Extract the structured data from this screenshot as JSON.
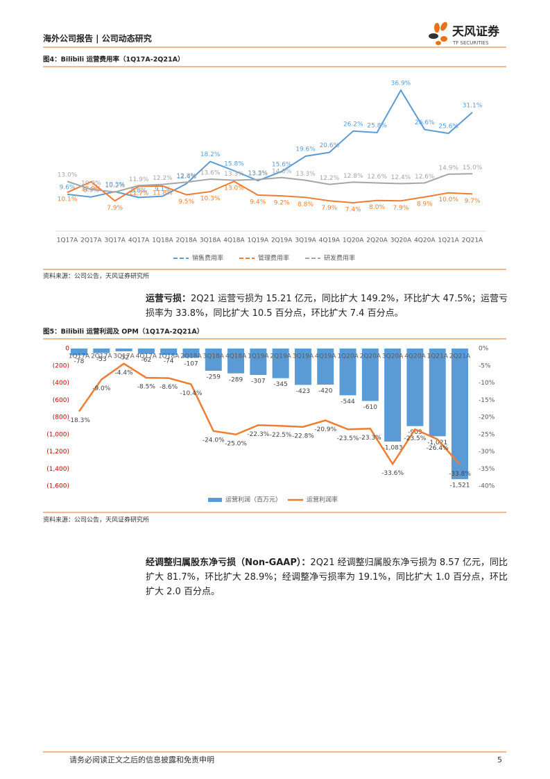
{
  "header": {
    "left": "海外公司报告 | 公司动态研究",
    "brand": "天风证券",
    "brand_en": "TF SECURITIES"
  },
  "chart_data": [
    {
      "type": "line",
      "title": "图4：Bilibili 运营费用率（1Q17A-2Q21A）",
      "categories": [
        "1Q17A",
        "2Q17A",
        "3Q17A",
        "4Q17A",
        "1Q18A",
        "2Q18A",
        "3Q18A",
        "4Q18A",
        "1Q19A",
        "2Q19A",
        "3Q19A",
        "4Q19A",
        "1Q20A",
        "2Q20A",
        "3Q20A",
        "4Q20A",
        "1Q21A",
        "2Q21A"
      ],
      "series": [
        {
          "name": "销售费用率",
          "color": "#5b9bd5",
          "values": [
            9.6,
            8.9,
            10.3,
            8.8,
            9.1,
            12.4,
            18.2,
            15.8,
            13.2,
            15.6,
            19.6,
            20.6,
            26.2,
            25.8,
            36.9,
            26.6,
            25.6,
            31.1
          ],
          "value_labels": [
            "9.6%",
            "8.9%",
            "10.3%",
            "8.8%",
            "9.1%",
            "12.4%",
            "18.2%",
            "15.8%",
            "13.2%",
            "15.6%",
            "19.6%",
            "20.6%",
            "26.2%",
            "25.8%",
            "36.9%",
            "26.6%",
            "25.6%",
            "31.1%"
          ]
        },
        {
          "name": "管理费用率",
          "color": "#ed7d31",
          "values": [
            10.1,
            12.9,
            7.9,
            11.7,
            11.8,
            9.5,
            10.3,
            13.0,
            9.4,
            9.2,
            8.8,
            7.9,
            7.4,
            8.0,
            7.9,
            8.9,
            10.0,
            9.7
          ],
          "value_labels": [
            "10.1%",
            "12.9%",
            "7.9%",
            "11.7%",
            "11.8%",
            "9.5%",
            "10.3%",
            "13.0%",
            "9.4%",
            "9.2%",
            "8.8%",
            "7.9%",
            "7.4%",
            "8.0%",
            "7.9%",
            "8.9%",
            "10.0%",
            "9.7%"
          ]
        },
        {
          "name": "研发费用率",
          "color": "#a5a5a5",
          "values": [
            13.0,
            10.9,
            10.2,
            11.9,
            12.2,
            12.8,
            13.6,
            13.3,
            13.5,
            14.0,
            13.3,
            12.2,
            12.8,
            12.6,
            12.4,
            12.6,
            14.9,
            15.0
          ],
          "value_labels": [
            "13.0%",
            "10.9%",
            "10.2%",
            "11.9%",
            "12.2%",
            "12.8%",
            "13.6%",
            "13.3%",
            "13.5%",
            "14.0%",
            "13.3%",
            "12.2%",
            "12.8%",
            "12.6%",
            "12.4%",
            "12.6%",
            "14.9%",
            "15.0%"
          ]
        }
      ]
    },
    {
      "type": "combo",
      "title": "图5：Bilibili 运营利润及 OPM（1Q17A-2Q21A）",
      "categories": [
        "1Q17A",
        "2Q17A",
        "3Q17A",
        "4Q17A",
        "1Q18A",
        "2Q18A",
        "3Q18A",
        "4Q18A",
        "1Q19A",
        "2Q19A",
        "3Q19A",
        "4Q19A",
        "1Q20A",
        "2Q20A",
        "3Q20A",
        "4Q20A",
        "1Q21A",
        "2Q21A"
      ],
      "ylim": [
        -1600,
        0
      ],
      "yticks": [
        0,
        {
          "value": -200,
          "label": "(200)"
        },
        {
          "value": -400,
          "label": "(400)"
        },
        {
          "value": -600,
          "label": "(600)"
        },
        {
          "value": -800,
          "label": "(800)"
        },
        {
          "value": -1000,
          "label": "(1,000)"
        },
        {
          "value": -1200,
          "label": "(1,200)"
        },
        {
          "value": -1400,
          "label": "(1,400)"
        },
        {
          "value": -1600,
          "label": "(1,600)"
        }
      ],
      "y2lim": [
        -40,
        0
      ],
      "y2ticks": [
        {
          "value": 0,
          "label": "0%"
        },
        {
          "value": -5,
          "label": "-5%"
        },
        {
          "value": -10,
          "label": "-10%"
        },
        {
          "value": -15,
          "label": "-15%"
        },
        {
          "value": -20,
          "label": "-20%"
        },
        {
          "value": -25,
          "label": "-25%"
        },
        {
          "value": -30,
          "label": "-30%"
        },
        {
          "value": -35,
          "label": "-35%"
        },
        {
          "value": -40,
          "label": "-40%"
        }
      ],
      "series": [
        {
          "name": "运营利润（百万元）",
          "type": "bar",
          "color": "#5b9bd5",
          "values": [
            -78,
            -53,
            -32,
            -62,
            -74,
            -107,
            -259,
            -289,
            -307,
            -345,
            -423,
            -420,
            -544,
            -610,
            -1083,
            -903,
            -1021,
            -1521
          ],
          "value_labels": [
            "-78",
            "-53",
            "-32",
            "-62",
            "-74",
            "-107",
            "-259",
            "-289",
            "-307",
            "-345",
            "-423",
            "-420",
            "-544",
            "-610",
            "-1,083",
            "-903",
            "-1,021",
            "-1,521"
          ]
        },
        {
          "name": "运营利润率",
          "type": "line",
          "axis": "y2",
          "color": "#ed7d31",
          "values": [
            -18.3,
            -9.0,
            -4.4,
            -8.5,
            -8.6,
            -10.4,
            -24.0,
            -25.0,
            -22.3,
            -22.5,
            -22.8,
            -20.9,
            -23.5,
            -23.3,
            -33.6,
            -23.5,
            -26.4,
            -33.8
          ],
          "value_labels": [
            "-18.3%",
            "-9.0%",
            "-4.4%",
            "-8.5%",
            "-8.6%",
            "-10.4%",
            "-24.0%",
            "-25.0%",
            "-22.3%",
            "-22.5%",
            "-22.8%",
            "-20.9%",
            "-23.5%",
            "-23.3%",
            "-33.6%",
            "-23.5%",
            "-26.4%",
            "-33.8%"
          ]
        }
      ]
    }
  ],
  "sources": [
    "资料来源：公司公告，天风证券研究所",
    "资料来源：公司公告，天风证券研究所"
  ],
  "paragraphs": [
    {
      "lead": "运营亏损：",
      "text": "2Q21 运营亏损为 15.21 亿元，同比扩大 149.2%，环比扩大 47.5%；运营亏损率为 33.8%，同比扩大 10.5 百分点，环比扩大 7.4 百分点。"
    },
    {
      "lead": "经调整归属股东净亏损（Non-GAAP）：",
      "text": "2Q21 经调整归属股东净亏损为 8.57 亿元，同比扩大 81.7%，环比扩大 28.9%；经调整净亏损率为 19.1%，同比扩大 1.0 百分点，环比扩大 2.0 百分点。"
    }
  ],
  "footer": {
    "disclaimer": "请务必阅读正文之后的信息披露和免责申明",
    "page": 5
  }
}
